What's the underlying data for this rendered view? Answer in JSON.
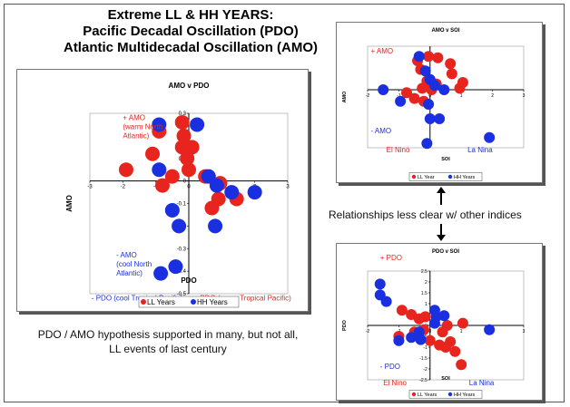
{
  "title_lines": [
    "Extreme LL & HH YEARS:",
    "Pacific Decadal Oscillation (PDO)",
    "Atlantic Multidecadal Oscillation (AMO)"
  ],
  "middle_note": "Relationships less clear w/ other indices",
  "bottom_note": "PDO / AMO hypothesis supported in many, but not all, LL events of last century",
  "colors": {
    "ll": "#e8241f",
    "hh": "#1a2fe0"
  },
  "chart_data": [
    {
      "id": "amo_v_pdo",
      "type": "scatter",
      "title": "AMO v PDO",
      "xlabel": "PDO",
      "ylabel": "AMO",
      "xlim": [
        -3,
        3
      ],
      "ylim": [
        -0.5,
        0.3
      ],
      "xticks": [
        -3,
        -2,
        -1,
        0,
        1,
        2,
        3
      ],
      "xtick_labels": [
        "-3",
        "-2",
        "-1",
        "0",
        "1",
        "2",
        "3"
      ],
      "yticks": [
        0.3,
        0.2,
        0.1,
        0,
        -0.1,
        -0.2,
        -0.3,
        -0.4,
        -0.5
      ],
      "ytick_labels": [
        "0.3",
        "0.2",
        "0.1",
        "0",
        "-0.1",
        "-0.2",
        "-0.3",
        "-0.4",
        "-0.5"
      ],
      "annotations": [
        {
          "lines": [
            "+ AMO",
            "(warm North",
            "Atlantic)"
          ],
          "color": "ll",
          "x": -2.0,
          "y": 0.27
        },
        {
          "lines": [
            "- AMO",
            "(cool North",
            "Atlantic)"
          ],
          "color": "hh",
          "x": -2.2,
          "y": -0.34
        },
        {
          "lines": [
            "- PDO  (cool Tropical Pacific)"
          ],
          "color": "hh",
          "x": -2.95,
          "y": -0.53
        },
        {
          "lines": [
            "+ PDO   (warm Tropical Pacific)"
          ],
          "color": "ll",
          "x": 0.15,
          "y": -0.53
        }
      ],
      "legend": [
        "LL Years",
        "HH Years"
      ],
      "series": [
        {
          "name": "LL Years",
          "color": "ll",
          "points": [
            [
              -1.9,
              0.05
            ],
            [
              -1.1,
              0.12
            ],
            [
              -0.9,
              0.22
            ],
            [
              -0.2,
              0.26
            ],
            [
              -0.15,
              0.2
            ],
            [
              -0.2,
              0.15
            ],
            [
              -0.5,
              0.02
            ],
            [
              -0.8,
              -0.02
            ],
            [
              -0.05,
              0.1
            ],
            [
              0.1,
              0.15
            ],
            [
              0.0,
              0.05
            ],
            [
              0.9,
              -0.08
            ],
            [
              1.45,
              -0.08
            ],
            [
              0.7,
              -0.12
            ],
            [
              0.95,
              -0.01
            ],
            [
              0.5,
              0.02
            ]
          ]
        },
        {
          "name": "HH Years",
          "color": "hh",
          "points": [
            [
              -0.9,
              0.25
            ],
            [
              -0.9,
              0.05
            ],
            [
              -0.5,
              -0.13
            ],
            [
              -0.3,
              -0.2
            ],
            [
              -0.4,
              -0.38
            ],
            [
              -0.85,
              -0.41
            ],
            [
              0.25,
              0.25
            ],
            [
              0.6,
              0.02
            ],
            [
              0.85,
              -0.02
            ],
            [
              0.8,
              -0.2
            ],
            [
              1.3,
              -0.05
            ],
            [
              2.0,
              -0.05
            ]
          ]
        }
      ]
    },
    {
      "id": "amo_v_soi",
      "type": "scatter",
      "title": "AMO v SOI",
      "xlabel": "SOI",
      "ylabel": "AMO",
      "xlim": [
        -2,
        3
      ],
      "ylim": [
        -0.4,
        0.3
      ],
      "xticks": [
        -2,
        -1,
        0,
        1,
        2,
        3
      ],
      "xtick_labels": [
        "-2",
        "-1",
        "0",
        "1",
        "2",
        "3"
      ],
      "annotations": [
        {
          "lines": [
            "+ AMO"
          ],
          "color": "ll",
          "x": -1.9,
          "y": 0.25
        },
        {
          "lines": [
            "- AMO"
          ],
          "color": "hh",
          "x": -1.9,
          "y": -0.3
        },
        {
          "lines": [
            "El Nino"
          ],
          "color": "ll",
          "x": -1.4,
          "y": -0.43
        },
        {
          "lines": [
            "La Nina"
          ],
          "color": "hh",
          "x": 1.2,
          "y": -0.43
        }
      ],
      "legend": [
        "LL Year",
        "HH Years"
      ],
      "series": [
        {
          "name": "LL Year",
          "color": "ll",
          "points": [
            [
              -0.4,
              0.2
            ],
            [
              -0.3,
              0.14
            ],
            [
              -0.1,
              0.06
            ],
            [
              -0.25,
              0.01
            ],
            [
              -0.75,
              -0.02
            ],
            [
              -0.5,
              -0.06
            ],
            [
              -0.2,
              -0.08
            ],
            [
              0.05,
              0.0
            ],
            [
              0.2,
              0.04
            ],
            [
              0.25,
              0.22
            ],
            [
              0.65,
              0.18
            ],
            [
              0.7,
              0.11
            ],
            [
              1.05,
              0.05
            ],
            [
              0.95,
              0.01
            ],
            [
              -0.05,
              0.23
            ]
          ]
        },
        {
          "name": "HH Years",
          "color": "hh",
          "points": [
            [
              -1.5,
              0.0
            ],
            [
              -0.95,
              -0.08
            ],
            [
              -0.15,
              0.13
            ],
            [
              0.0,
              0.07
            ],
            [
              0.15,
              0.03
            ],
            [
              0.45,
              0.0
            ],
            [
              -0.05,
              -0.1
            ],
            [
              0.0,
              -0.2
            ],
            [
              0.3,
              -0.2
            ],
            [
              1.9,
              -0.33
            ],
            [
              -0.1,
              -0.37
            ],
            [
              -0.35,
              0.23
            ]
          ]
        }
      ]
    },
    {
      "id": "pdo_v_soi",
      "type": "scatter",
      "title": "PDO v SOI",
      "xlabel": "SOI",
      "ylabel": "PDO",
      "xlim": [
        -2,
        3
      ],
      "ylim": [
        -2.5,
        2.5
      ],
      "xticks": [
        -2,
        -1,
        0,
        1,
        2,
        3
      ],
      "xtick_labels": [
        "-2",
        "-1",
        "0",
        "1",
        "2",
        "3"
      ],
      "yticks": [
        2.5,
        2,
        1.5,
        1,
        0.5,
        0,
        -0.5,
        -1,
        -1.5,
        -2,
        -2.5
      ],
      "ytick_labels": [
        "2.5",
        "2",
        "1.5",
        "1",
        "0.5",
        "0",
        "-0.5",
        "-1",
        "-1.5",
        "-2",
        "-2.5"
      ],
      "annotations": [
        {
          "lines": [
            "+ PDO"
          ],
          "color": "ll",
          "x": -1.6,
          "y": 3.0
        },
        {
          "lines": [
            "- PDO"
          ],
          "color": "hh",
          "x": -1.6,
          "y": -2.0
        },
        {
          "lines": [
            "El Nino"
          ],
          "color": "ll",
          "x": -1.5,
          "y": -2.75
        },
        {
          "lines": [
            "La Nina"
          ],
          "color": "hh",
          "x": 1.25,
          "y": -2.75
        }
      ],
      "legend": [
        "LL Years",
        "HH Years"
      ],
      "series": [
        {
          "name": "LL Years",
          "color": "ll",
          "points": [
            [
              -0.9,
              0.7
            ],
            [
              -0.6,
              0.5
            ],
            [
              -0.35,
              0.3
            ],
            [
              -0.2,
              -0.2
            ],
            [
              -0.5,
              -0.3
            ],
            [
              -1.0,
              -0.5
            ],
            [
              0.0,
              -0.7
            ],
            [
              0.3,
              -0.9
            ],
            [
              0.65,
              -0.75
            ],
            [
              0.5,
              -1.0
            ],
            [
              0.8,
              -1.2
            ],
            [
              1.0,
              -1.8
            ],
            [
              0.4,
              -0.3
            ],
            [
              0.55,
              0.0
            ],
            [
              1.05,
              0.1
            ],
            [
              -0.15,
              0.4
            ]
          ]
        },
        {
          "name": "HH Years",
          "color": "hh",
          "points": [
            [
              -1.6,
              1.9
            ],
            [
              -1.6,
              1.4
            ],
            [
              -1.4,
              1.1
            ],
            [
              -1.0,
              -0.7
            ],
            [
              -0.6,
              -0.55
            ],
            [
              -0.3,
              -0.65
            ],
            [
              -0.35,
              -0.3
            ],
            [
              0.15,
              0.7
            ],
            [
              0.2,
              0.4
            ],
            [
              0.15,
              0.1
            ],
            [
              0.45,
              0.45
            ],
            [
              1.9,
              -0.2
            ]
          ]
        }
      ]
    }
  ]
}
